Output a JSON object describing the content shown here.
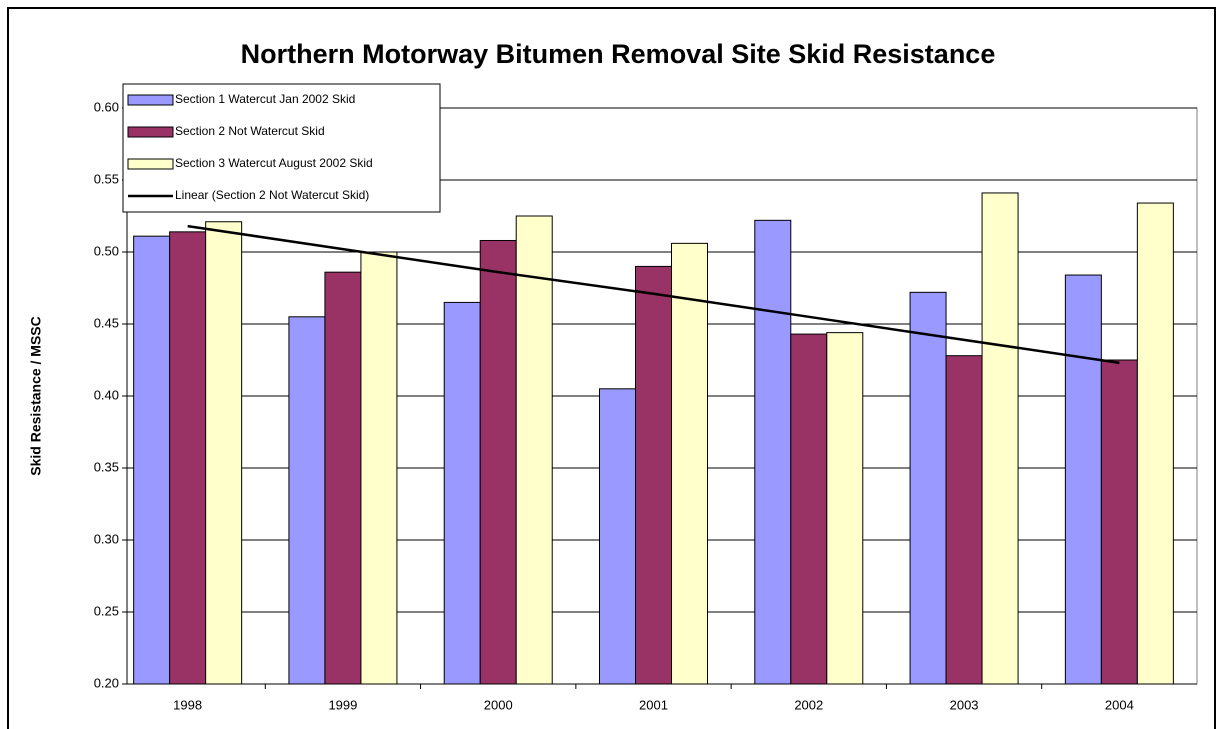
{
  "chart_data": {
    "type": "bar",
    "title": "Northern Motorway Bitumen Removal Site Skid Resistance",
    "y_label": "Skid Resistance / MSSC",
    "categories": [
      "1998",
      "1999",
      "2000",
      "2001",
      "2002",
      "2003",
      "2004"
    ],
    "series": [
      {
        "name": "Section 1 Watercut Jan 2002 Skid",
        "color": "#9999ff",
        "values": [
          0.511,
          0.455,
          0.465,
          0.405,
          0.522,
          0.472,
          0.484
        ]
      },
      {
        "name": "Section 2 Not Watercut Skid",
        "color": "#993366",
        "values": [
          0.514,
          0.486,
          0.508,
          0.49,
          0.443,
          0.428,
          0.425
        ]
      },
      {
        "name": "Section 3 Watercut August 2002 Skid",
        "color": "#ffffcc",
        "values": [
          0.521,
          0.5,
          0.525,
          0.506,
          0.444,
          0.541,
          0.534
        ]
      },
      {
        "name": "Linear (Section 2 Not Watercut Skid)",
        "color": "#000000",
        "type": "line",
        "values": [
          0.518,
          0.502,
          0.486,
          0.471,
          0.455,
          0.439,
          0.423
        ]
      }
    ],
    "ylim": [
      0.2,
      0.6
    ],
    "yticks": [
      {
        "value": 0.2,
        "label": "0.20"
      },
      0.25,
      {
        "value": 0.3,
        "label": "0.30"
      },
      0.35,
      {
        "value": 0.4,
        "label": "0.40"
      },
      0.45,
      {
        "value": 0.5,
        "label": "0.50"
      },
      0.55,
      {
        "value": 0.6,
        "label": "0.60"
      }
    ],
    "grid": true,
    "legend": "top-left"
  }
}
